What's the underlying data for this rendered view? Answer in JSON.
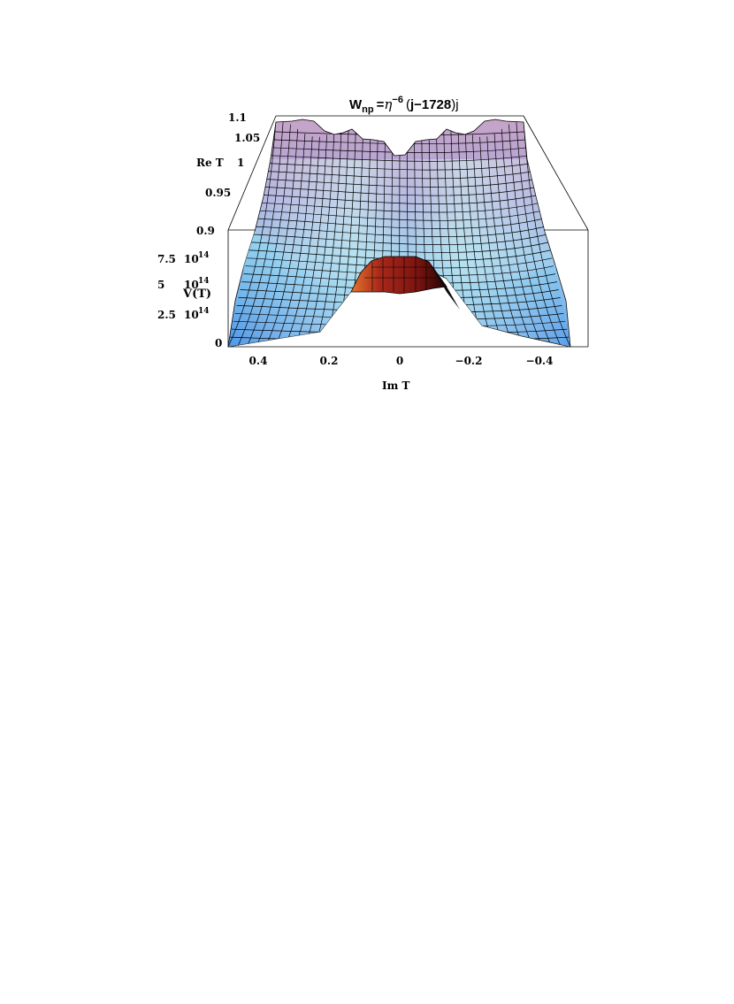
{
  "chart_data": {
    "type": "surface",
    "title": {
      "base": "W",
      "sub": "np",
      "eq": "=",
      "eta": "η",
      "exp": "−6",
      "open": "(",
      "body": "j−1728",
      "close": ")j"
    },
    "xlabel": "Im T",
    "ylabel": "Re T",
    "zlabel": "V(T)",
    "x_ticks": [
      "0.4",
      "0.2",
      "0",
      "−0.2",
      "−0.4"
    ],
    "y_ticks": [
      "0.95",
      "1",
      "1.05",
      "1.1"
    ],
    "y_axis_origin_label": "0.9",
    "z_ticks": [
      {
        "mant": "0",
        "pow": ""
      },
      {
        "mant": "2.5",
        "pow": "14"
      },
      {
        "mant": "5",
        "pow": "14"
      },
      {
        "mant": "7.5",
        "pow": "14"
      }
    ],
    "z_base": "10",
    "xlim": [
      0.5,
      -0.5
    ],
    "ylim": [
      0.9,
      1.1
    ],
    "zlim": [
      0,
      1000000000000000.0
    ],
    "center_peak": {
      "imT": 0,
      "reT": 0.95,
      "height": 700000000000000.0
    },
    "colors": {
      "surface_low": "#5aa0e8",
      "surface_mid": "#c8f0f0",
      "surface_high": "#c8a8d8",
      "peak_dark": "#7a1410",
      "peak_light": "#e06a2a",
      "mesh": "#000000"
    }
  }
}
